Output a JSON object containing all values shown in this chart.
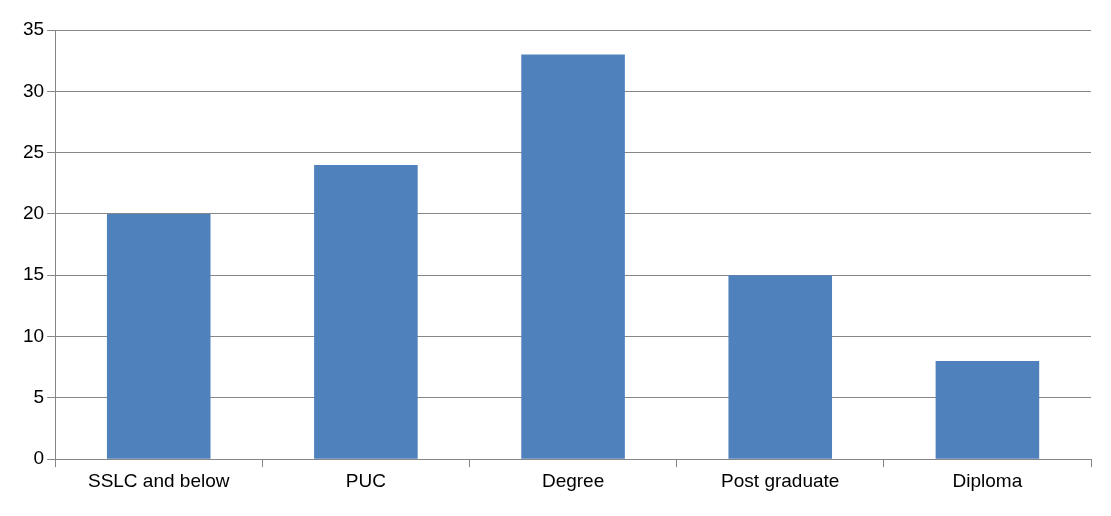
{
  "chart_data": {
    "type": "bar",
    "categories": [
      "SSLC and below",
      "PUC",
      "Degree",
      "Post graduate",
      "Diploma"
    ],
    "values": [
      20,
      24,
      33,
      15,
      8
    ],
    "color": "#4f81bd",
    "ylim": [
      0,
      35
    ],
    "yticks": [
      0,
      5,
      10,
      15,
      20,
      25,
      30,
      35
    ],
    "grid": "y",
    "legend": false
  }
}
